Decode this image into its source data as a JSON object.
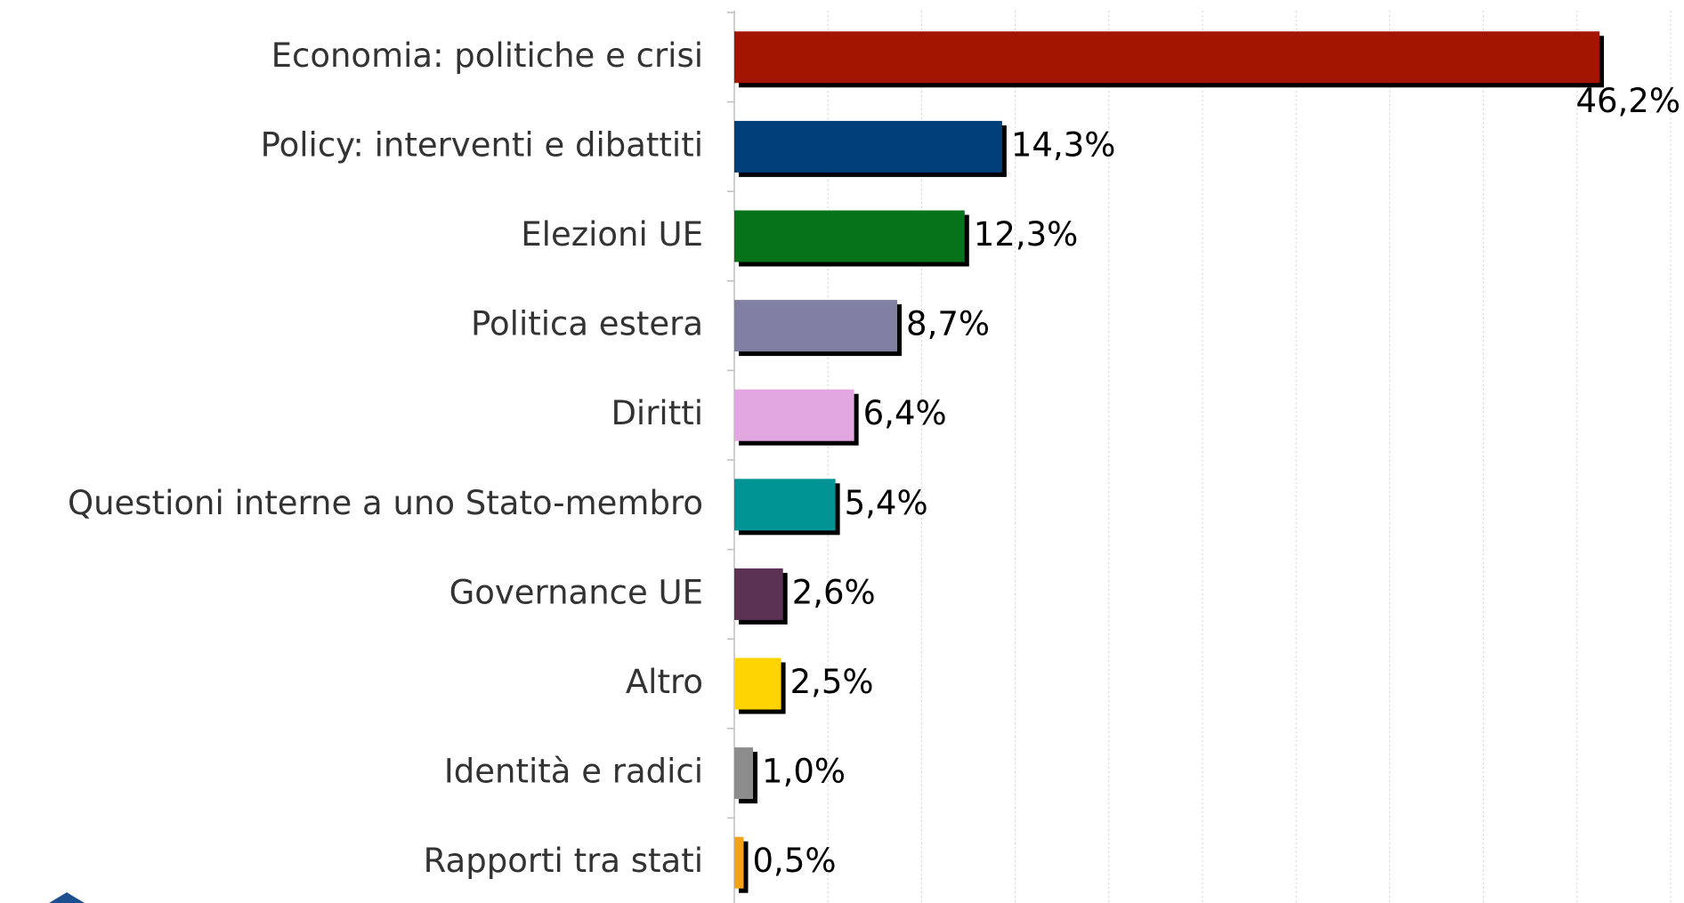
{
  "chart_data": {
    "type": "bar",
    "orientation": "horizontal",
    "categories": [
      "Economia: politiche e crisi",
      "Policy: interventi e dibattiti",
      "Elezioni UE",
      "Politica estera",
      "Diritti",
      "Questioni interne a uno Stato-membro",
      "Governance UE",
      "Altro",
      "Identità e radici",
      "Rapporti tra stati"
    ],
    "values": [
      46.2,
      14.3,
      12.3,
      8.7,
      6.4,
      5.4,
      2.6,
      2.5,
      1.0,
      0.5
    ],
    "value_labels": [
      "46,2%",
      "14,3%",
      "12,3%",
      "8,7%",
      "6,4%",
      "5,4%",
      "2,6%",
      "2,5%",
      "1,0%",
      "0,5%"
    ],
    "colors": [
      "#a31500",
      "#003f7a",
      "#06731a",
      "#8080a3",
      "#e2a6e0",
      "#009494",
      "#5b3154",
      "#ffd400",
      "#8c8c8c",
      "#f5a21b"
    ],
    "xlim": [
      0,
      50
    ],
    "xticks": [
      0,
      5,
      10,
      15,
      20,
      25,
      30,
      35,
      40,
      45,
      50
    ],
    "grid": true
  }
}
